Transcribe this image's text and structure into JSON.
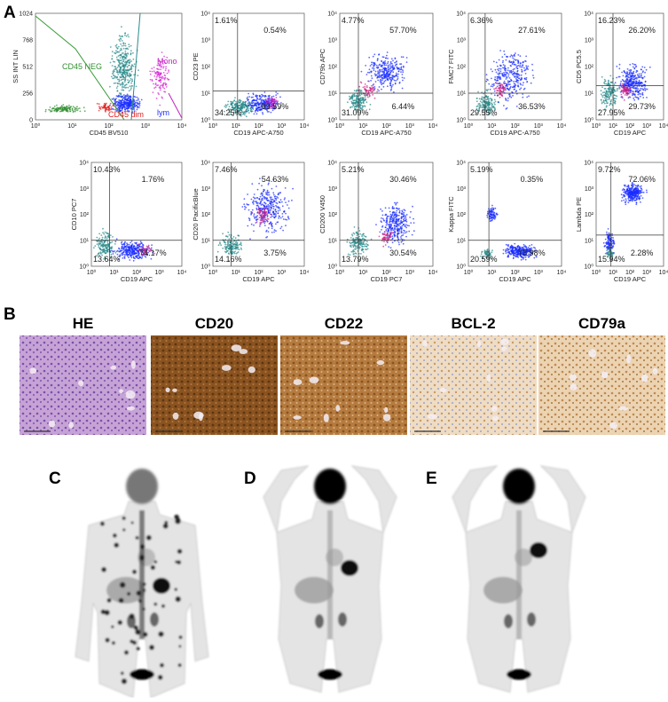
{
  "panel_a": {
    "label": "A",
    "log_ticks": [
      "10⁰",
      "10¹",
      "10²",
      "10³",
      "10⁴"
    ],
    "linear_ticks": [
      "0",
      "256",
      "512",
      "768",
      "1024"
    ],
    "gate_labels": [
      "CD45 NEG",
      "Mono",
      "CD45 dim",
      "lym"
    ],
    "plots": [
      {
        "y_label": "SS INT LIN",
        "x_label": "CD45 BV510"
      },
      {
        "y_label": "CD23 PE",
        "x_label": "CD19 APC-A750",
        "quadrants": [
          "1.61%",
          "0.54%",
          "34.25%",
          "63.59%"
        ]
      },
      {
        "y_label": "CD79b APC",
        "x_label": "CD19 APC-A750",
        "quadrants": [
          "4.77%",
          "57.70%",
          "31.09%",
          "6.44%"
        ]
      },
      {
        "y_label": "FMC7 FITC",
        "x_label": "CD19 APC-A750",
        "quadrants": [
          "6.36%",
          "27.61%",
          "29.55%",
          "36.53%"
        ]
      },
      {
        "y_label": "CD5 PC5.5",
        "x_label": "CD19 APC",
        "quadrants": [
          "16.23%",
          "26.20%",
          "27.95%",
          "29.73%"
        ]
      },
      {
        "y_label": "CD10 PC7",
        "x_label": "CD19 APC",
        "quadrants": [
          "10.43%",
          "1.76%",
          "13.64%",
          "74.17%"
        ]
      },
      {
        "y_label": "CD20 PacificBlue",
        "x_label": "CD19 APC",
        "quadrants": [
          "7.46%",
          "54.63%",
          "14.16%",
          "3.75%"
        ]
      },
      {
        "y_label": "CD200 V450",
        "x_label": "CD19 PC7",
        "quadrants": [
          "5.21%",
          "30.46%",
          "13.79%",
          "30.54%"
        ]
      },
      {
        "y_label": "Kappa FITC",
        "x_label": "CD19 APC",
        "quadrants": [
          "5.19%",
          "0.35%",
          "20.59%",
          "73.98%"
        ]
      },
      {
        "y_label": "Lambda PE",
        "x_label": "CD19 APC",
        "quadrants": [
          "9.72%",
          "72.06%",
          "15.94%",
          "2.28%"
        ]
      }
    ]
  },
  "panel_b": {
    "label": "B",
    "stains": [
      "HE",
      "CD20",
      "CD22",
      "BCL-2",
      "CD79a"
    ]
  },
  "panel_c": {
    "label": "C"
  },
  "panel_d": {
    "label": "D"
  },
  "panel_e": {
    "label": "E"
  }
}
